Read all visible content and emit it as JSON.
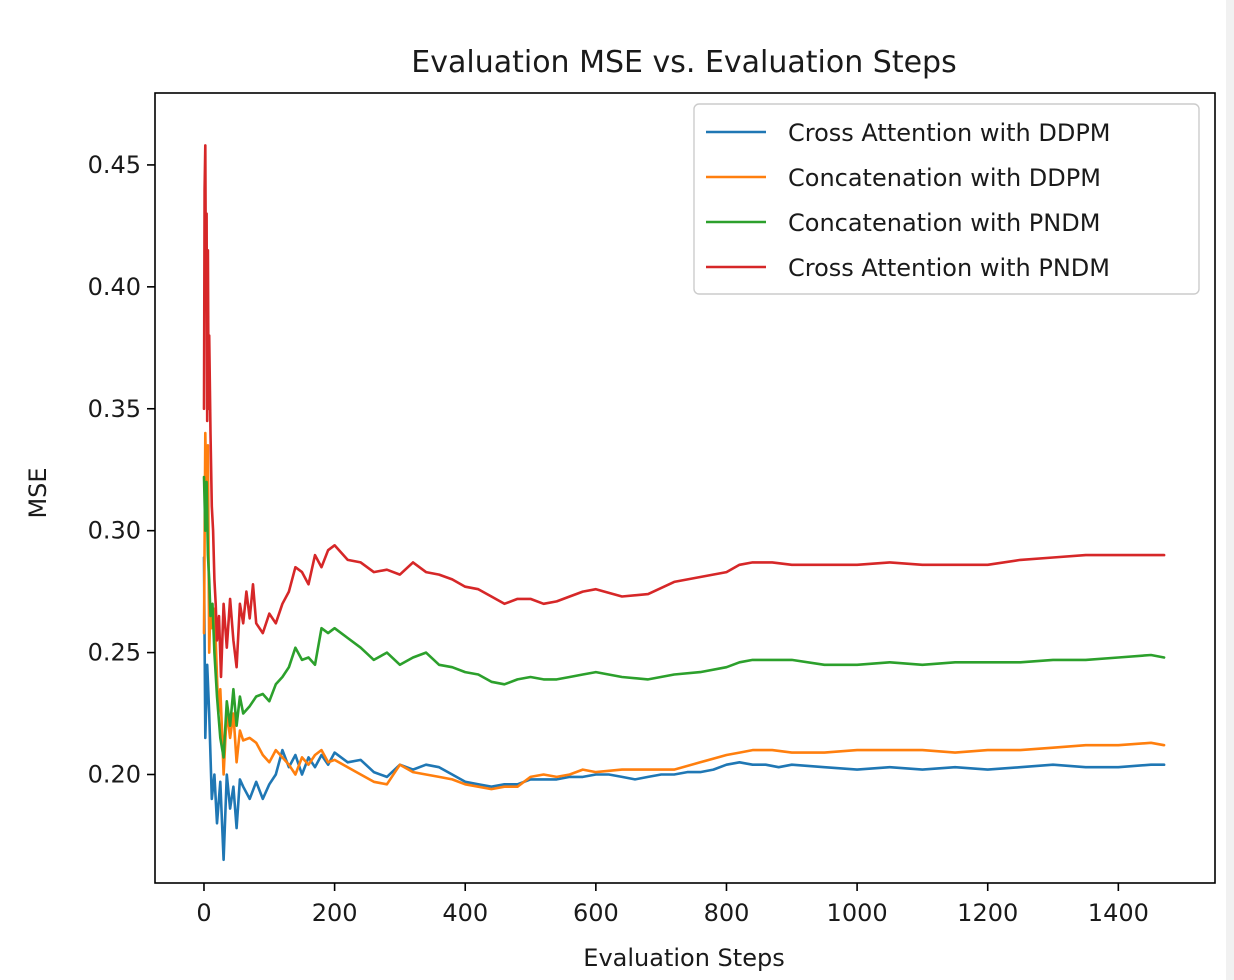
{
  "chart_data": {
    "type": "line",
    "title": "Evaluation MSE vs. Evaluation Steps",
    "xlabel": "Evaluation Steps",
    "ylabel": "MSE",
    "xlim": [
      -75,
      1548
    ],
    "ylim": [
      0.1555,
      0.4795
    ],
    "xticks": [
      0,
      200,
      400,
      600,
      800,
      1000,
      1200,
      1400
    ],
    "xtick_labels": [
      "0",
      "200",
      "400",
      "600",
      "800",
      "1000",
      "1200",
      "1400"
    ],
    "yticks": [
      0.2,
      0.25,
      0.3,
      0.35,
      0.4,
      0.45
    ],
    "ytick_labels": [
      "0.20",
      "0.25",
      "0.30",
      "0.35",
      "0.40",
      "0.45"
    ],
    "grid": false,
    "legend_position": "top-right",
    "series": [
      {
        "name": "Cross Attention with DDPM",
        "color": "#1f77b4",
        "x": [
          0,
          2,
          5,
          8,
          12,
          16,
          20,
          25,
          30,
          35,
          40,
          45,
          50,
          55,
          60,
          70,
          80,
          90,
          100,
          110,
          120,
          130,
          140,
          150,
          160,
          170,
          180,
          190,
          200,
          220,
          240,
          260,
          280,
          300,
          320,
          340,
          360,
          380,
          400,
          420,
          440,
          460,
          480,
          500,
          520,
          540,
          560,
          580,
          600,
          620,
          640,
          660,
          680,
          700,
          720,
          740,
          760,
          780,
          800,
          820,
          840,
          860,
          880,
          900,
          950,
          1000,
          1050,
          1100,
          1150,
          1200,
          1250,
          1300,
          1350,
          1400,
          1450,
          1470
        ],
        "y": [
          0.289,
          0.215,
          0.245,
          0.225,
          0.19,
          0.2,
          0.18,
          0.197,
          0.165,
          0.2,
          0.186,
          0.195,
          0.178,
          0.198,
          0.195,
          0.19,
          0.197,
          0.19,
          0.196,
          0.2,
          0.21,
          0.203,
          0.208,
          0.2,
          0.207,
          0.203,
          0.208,
          0.204,
          0.209,
          0.205,
          0.206,
          0.201,
          0.199,
          0.204,
          0.202,
          0.204,
          0.203,
          0.2,
          0.197,
          0.196,
          0.195,
          0.196,
          0.196,
          0.198,
          0.198,
          0.198,
          0.199,
          0.199,
          0.2,
          0.2,
          0.199,
          0.198,
          0.199,
          0.2,
          0.2,
          0.201,
          0.201,
          0.202,
          0.204,
          0.205,
          0.204,
          0.204,
          0.203,
          0.204,
          0.203,
          0.202,
          0.203,
          0.202,
          0.203,
          0.202,
          0.203,
          0.204,
          0.203,
          0.203,
          0.204,
          0.204
        ]
      },
      {
        "name": "Concatenation with DDPM",
        "color": "#ff7f0e",
        "x": [
          0,
          2,
          4,
          6,
          8,
          10,
          12,
          15,
          18,
          20,
          22,
          25,
          28,
          30,
          35,
          40,
          45,
          50,
          55,
          60,
          70,
          80,
          90,
          100,
          110,
          120,
          130,
          140,
          150,
          160,
          170,
          180,
          190,
          200,
          220,
          240,
          260,
          280,
          300,
          320,
          340,
          360,
          380,
          400,
          420,
          440,
          460,
          480,
          500,
          520,
          540,
          560,
          580,
          600,
          640,
          680,
          720,
          760,
          800,
          820,
          840,
          870,
          900,
          950,
          1000,
          1050,
          1100,
          1150,
          1200,
          1250,
          1300,
          1350,
          1400,
          1450,
          1470
        ],
        "y": [
          0.258,
          0.34,
          0.31,
          0.335,
          0.25,
          0.27,
          0.26,
          0.268,
          0.255,
          0.24,
          0.225,
          0.235,
          0.215,
          0.2,
          0.226,
          0.215,
          0.225,
          0.205,
          0.218,
          0.214,
          0.215,
          0.213,
          0.208,
          0.205,
          0.21,
          0.207,
          0.204,
          0.2,
          0.207,
          0.204,
          0.208,
          0.21,
          0.205,
          0.206,
          0.203,
          0.2,
          0.197,
          0.196,
          0.204,
          0.201,
          0.2,
          0.199,
          0.198,
          0.196,
          0.195,
          0.194,
          0.195,
          0.195,
          0.199,
          0.2,
          0.199,
          0.2,
          0.202,
          0.201,
          0.202,
          0.202,
          0.202,
          0.205,
          0.208,
          0.209,
          0.21,
          0.21,
          0.209,
          0.209,
          0.21,
          0.21,
          0.21,
          0.209,
          0.21,
          0.21,
          0.211,
          0.212,
          0.212,
          0.213,
          0.212
        ]
      },
      {
        "name": "Concatenation with PNDM",
        "color": "#2ca02c",
        "x": [
          0,
          2,
          4,
          6,
          8,
          10,
          13,
          16,
          20,
          25,
          30,
          35,
          40,
          45,
          50,
          55,
          60,
          70,
          80,
          90,
          100,
          110,
          120,
          130,
          140,
          150,
          160,
          170,
          180,
          190,
          200,
          220,
          240,
          260,
          280,
          300,
          320,
          340,
          360,
          380,
          400,
          420,
          440,
          460,
          480,
          500,
          520,
          540,
          560,
          580,
          600,
          640,
          680,
          720,
          760,
          800,
          820,
          840,
          870,
          900,
          950,
          1000,
          1050,
          1100,
          1150,
          1200,
          1250,
          1300,
          1350,
          1400,
          1450,
          1470
        ],
        "y": [
          0.322,
          0.3,
          0.32,
          0.29,
          0.28,
          0.265,
          0.27,
          0.25,
          0.232,
          0.215,
          0.207,
          0.23,
          0.22,
          0.235,
          0.22,
          0.232,
          0.225,
          0.228,
          0.232,
          0.233,
          0.23,
          0.237,
          0.24,
          0.244,
          0.252,
          0.247,
          0.248,
          0.245,
          0.26,
          0.258,
          0.26,
          0.256,
          0.252,
          0.247,
          0.25,
          0.245,
          0.248,
          0.25,
          0.245,
          0.244,
          0.242,
          0.241,
          0.238,
          0.237,
          0.239,
          0.24,
          0.239,
          0.239,
          0.24,
          0.241,
          0.242,
          0.24,
          0.239,
          0.241,
          0.242,
          0.244,
          0.246,
          0.247,
          0.247,
          0.247,
          0.245,
          0.245,
          0.246,
          0.245,
          0.246,
          0.246,
          0.246,
          0.247,
          0.247,
          0.248,
          0.249,
          0.248
        ]
      },
      {
        "name": "Cross Attention with PNDM",
        "color": "#d62728",
        "x": [
          0,
          1,
          2,
          3,
          4,
          5,
          6,
          7,
          8,
          10,
          12,
          14,
          16,
          18,
          20,
          23,
          26,
          30,
          35,
          40,
          45,
          50,
          55,
          60,
          65,
          70,
          75,
          80,
          90,
          100,
          110,
          120,
          130,
          140,
          150,
          160,
          170,
          180,
          190,
          200,
          220,
          240,
          260,
          280,
          300,
          320,
          340,
          360,
          380,
          400,
          420,
          440,
          460,
          480,
          500,
          520,
          540,
          560,
          580,
          600,
          640,
          680,
          720,
          760,
          800,
          820,
          840,
          870,
          900,
          950,
          1000,
          1050,
          1100,
          1150,
          1200,
          1250,
          1300,
          1350,
          1400,
          1450,
          1470
        ],
        "y": [
          0.35,
          0.44,
          0.458,
          0.4,
          0.43,
          0.345,
          0.415,
          0.35,
          0.38,
          0.34,
          0.31,
          0.3,
          0.28,
          0.27,
          0.255,
          0.265,
          0.24,
          0.27,
          0.252,
          0.272,
          0.255,
          0.244,
          0.27,
          0.262,
          0.275,
          0.264,
          0.278,
          0.262,
          0.258,
          0.266,
          0.262,
          0.27,
          0.275,
          0.285,
          0.283,
          0.278,
          0.29,
          0.285,
          0.292,
          0.294,
          0.288,
          0.287,
          0.283,
          0.284,
          0.282,
          0.287,
          0.283,
          0.282,
          0.28,
          0.277,
          0.276,
          0.273,
          0.27,
          0.272,
          0.272,
          0.27,
          0.271,
          0.273,
          0.275,
          0.276,
          0.273,
          0.274,
          0.279,
          0.281,
          0.283,
          0.286,
          0.287,
          0.287,
          0.286,
          0.286,
          0.286,
          0.287,
          0.286,
          0.286,
          0.286,
          0.288,
          0.289,
          0.29,
          0.29,
          0.29,
          0.29
        ]
      }
    ]
  }
}
